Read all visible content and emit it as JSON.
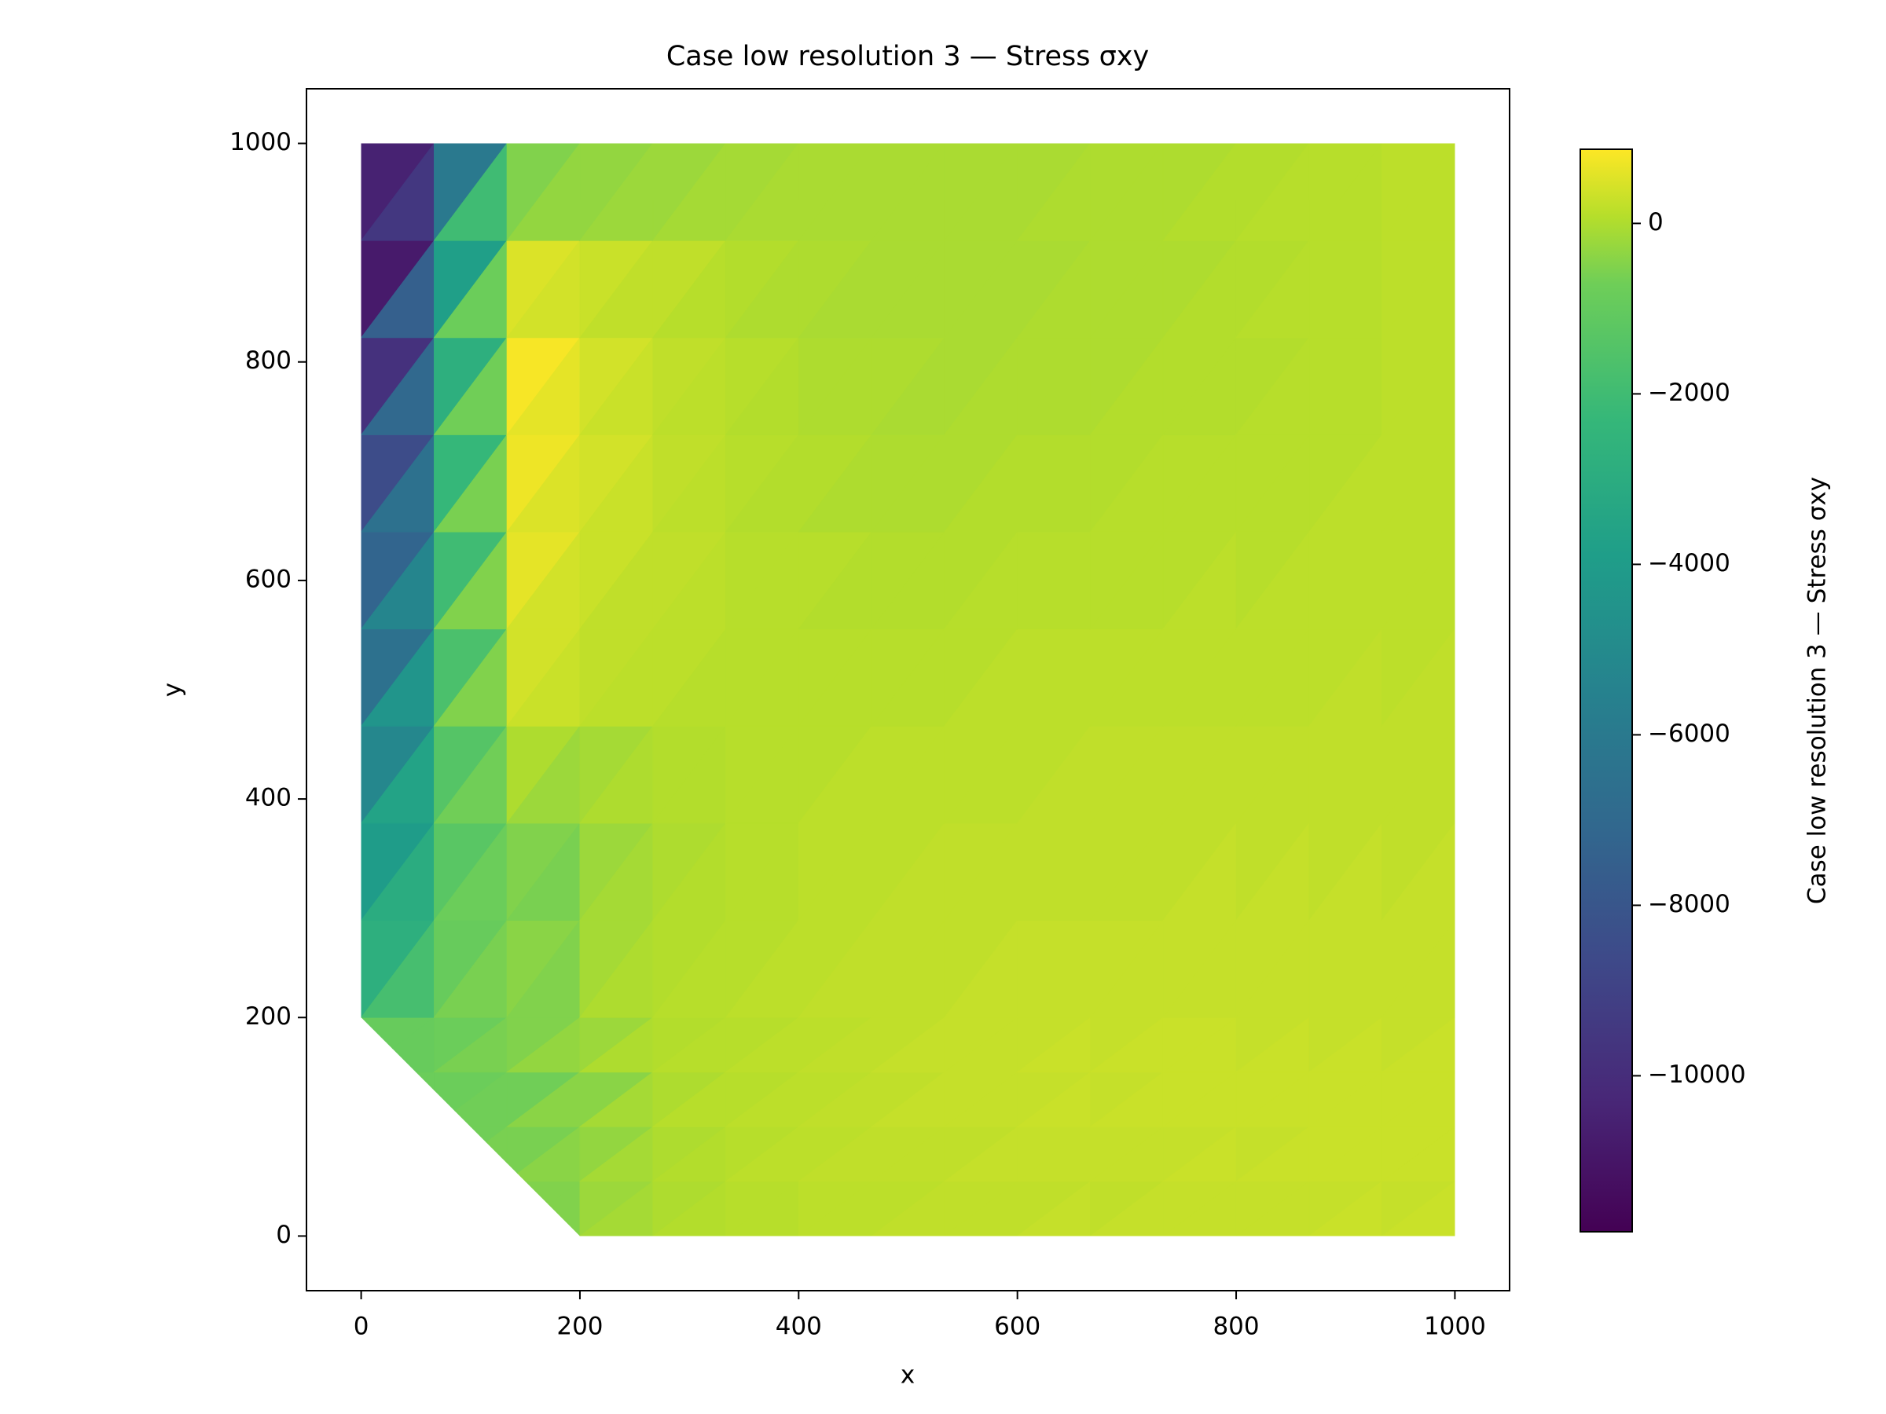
{
  "chart_data": {
    "type": "tripcolor",
    "title": "Case low resolution 3 — Stress σxy",
    "xlabel": "x",
    "ylabel": "y",
    "colorbar_label": "Case low resolution 3 — Stress σxy",
    "colormap": "viridis",
    "xlim": [
      -50,
      1050
    ],
    "ylim": [
      -50,
      1050
    ],
    "xticks": [
      0,
      200,
      400,
      600,
      800,
      1000
    ],
    "yticks": [
      0,
      200,
      400,
      600,
      800,
      1000
    ],
    "clim": [
      -11830,
      870
    ],
    "cticks": [
      {
        "value": 0,
        "label": "0"
      },
      {
        "value": -2000,
        "label": "−2000"
      },
      {
        "value": -4000,
        "label": "−4000"
      },
      {
        "value": -6000,
        "label": "−6000"
      },
      {
        "value": -8000,
        "label": "−8000"
      },
      {
        "value": -10000,
        "label": "−10000"
      }
    ],
    "domain": [
      [
        0,
        200
      ],
      [
        0,
        1000
      ],
      [
        1000,
        1000
      ],
      [
        1000,
        0
      ],
      [
        200,
        0
      ]
    ],
    "xedges": [
      0,
      66.7,
      133.3,
      200,
      266.7,
      333.3,
      400,
      466.7,
      533.3,
      600,
      666.7,
      733.3,
      800,
      866.7,
      933.3,
      1000
    ],
    "yedges": [
      0,
      50,
      100,
      150,
      200,
      288.9,
      377.8,
      466.7,
      555.6,
      644.4,
      733.3,
      822.2,
      911.1,
      1000
    ],
    "values": [
      [
        [
          -600,
          -600
        ],
        [
          -600,
          -600
        ],
        [
          -500,
          -500
        ],
        [
          -200,
          -100
        ],
        [
          0,
          50
        ],
        [
          100,
          100
        ],
        [
          150,
          150
        ],
        [
          150,
          200
        ],
        [
          200,
          200
        ],
        [
          200,
          250
        ],
        [
          200,
          250
        ],
        [
          250,
          250
        ],
        [
          250,
          250
        ],
        [
          250,
          300
        ],
        [
          250,
          300
        ]
      ],
      [
        [
          -700,
          -700
        ],
        [
          -700,
          -600
        ],
        [
          -600,
          -400
        ],
        [
          -300,
          -100
        ],
        [
          0,
          50
        ],
        [
          100,
          150
        ],
        [
          150,
          200
        ],
        [
          200,
          200
        ],
        [
          200,
          250
        ],
        [
          250,
          250
        ],
        [
          250,
          250
        ],
        [
          250,
          300
        ],
        [
          250,
          300
        ],
        [
          300,
          300
        ],
        [
          300,
          300
        ]
      ],
      [
        [
          -800,
          -800
        ],
        [
          -800,
          -700
        ],
        [
          -700,
          -400
        ],
        [
          -400,
          -100
        ],
        [
          0,
          100
        ],
        [
          100,
          150
        ],
        [
          150,
          200
        ],
        [
          200,
          250
        ],
        [
          250,
          250
        ],
        [
          250,
          300
        ],
        [
          250,
          300
        ],
        [
          300,
          300
        ],
        [
          300,
          300
        ],
        [
          300,
          300
        ],
        [
          300,
          300
        ]
      ],
      [
        [
          -900,
          -900
        ],
        [
          -800,
          -600
        ],
        [
          -500,
          -300
        ],
        [
          -200,
          0
        ],
        [
          50,
          100
        ],
        [
          100,
          150
        ],
        [
          150,
          200
        ],
        [
          200,
          250
        ],
        [
          250,
          250
        ],
        [
          250,
          300
        ],
        [
          250,
          300
        ],
        [
          300,
          300
        ],
        [
          250,
          300
        ],
        [
          250,
          300
        ],
        [
          250,
          300
        ]
      ],
      [
        [
          -2800,
          -1800
        ],
        [
          -900,
          -600
        ],
        [
          -400,
          -500
        ],
        [
          -100,
          0
        ],
        [
          50,
          100
        ],
        [
          100,
          150
        ],
        [
          150,
          200
        ],
        [
          200,
          200
        ],
        [
          200,
          250
        ],
        [
          250,
          250
        ],
        [
          250,
          250
        ],
        [
          250,
          250
        ],
        [
          250,
          250
        ],
        [
          250,
          250
        ],
        [
          250,
          250
        ]
      ],
      [
        [
          -4000,
          -3000
        ],
        [
          -1300,
          -800
        ],
        [
          -500,
          -600
        ],
        [
          -200,
          -100
        ],
        [
          0,
          50
        ],
        [
          100,
          100
        ],
        [
          150,
          150
        ],
        [
          150,
          200
        ],
        [
          200,
          200
        ],
        [
          200,
          200
        ],
        [
          200,
          200
        ],
        [
          200,
          250
        ],
        [
          200,
          250
        ],
        [
          200,
          250
        ],
        [
          200,
          250
        ]
      ],
      [
        [
          -5200,
          -3600
        ],
        [
          -1400,
          -700
        ],
        [
          0,
          -200
        ],
        [
          -100,
          0
        ],
        [
          50,
          50
        ],
        [
          100,
          100
        ],
        [
          100,
          150
        ],
        [
          150,
          150
        ],
        [
          150,
          150
        ],
        [
          150,
          200
        ],
        [
          200,
          200
        ],
        [
          200,
          200
        ],
        [
          200,
          200
        ],
        [
          200,
          200
        ],
        [
          200,
          200
        ]
      ],
      [
        [
          -6500,
          -4400
        ],
        [
          -1700,
          -500
        ],
        [
          400,
          300
        ],
        [
          200,
          150
        ],
        [
          150,
          100
        ],
        [
          100,
          100
        ],
        [
          100,
          100
        ],
        [
          100,
          100
        ],
        [
          100,
          150
        ],
        [
          150,
          150
        ],
        [
          150,
          150
        ],
        [
          150,
          150
        ],
        [
          150,
          150
        ],
        [
          150,
          200
        ],
        [
          150,
          200
        ]
      ],
      [
        [
          -7200,
          -5300
        ],
        [
          -2000,
          -500
        ],
        [
          600,
          400
        ],
        [
          300,
          200
        ],
        [
          200,
          150
        ],
        [
          100,
          100
        ],
        [
          100,
          50
        ],
        [
          50,
          50
        ],
        [
          50,
          100
        ],
        [
          100,
          100
        ],
        [
          100,
          100
        ],
        [
          100,
          150
        ],
        [
          100,
          150
        ],
        [
          150,
          150
        ],
        [
          150,
          150
        ]
      ],
      [
        [
          -8500,
          -6500
        ],
        [
          -2300,
          -600
        ],
        [
          700,
          500
        ],
        [
          400,
          300
        ],
        [
          200,
          150
        ],
        [
          100,
          50
        ],
        [
          50,
          0
        ],
        [
          0,
          0
        ],
        [
          0,
          50
        ],
        [
          50,
          50
        ],
        [
          50,
          100
        ],
        [
          100,
          100
        ],
        [
          100,
          100
        ],
        [
          100,
          150
        ],
        [
          150,
          150
        ]
      ],
      [
        [
          -9800,
          -7000
        ],
        [
          -2800,
          -700
        ],
        [
          800,
          600
        ],
        [
          400,
          300
        ],
        [
          200,
          150
        ],
        [
          100,
          50
        ],
        [
          0,
          0
        ],
        [
          0,
          -50
        ],
        [
          -50,
          0
        ],
        [
          0,
          0
        ],
        [
          0,
          50
        ],
        [
          50,
          50
        ],
        [
          50,
          100
        ],
        [
          100,
          100
        ],
        [
          150,
          150
        ]
      ],
      [
        [
          -10800,
          -7500
        ],
        [
          -3800,
          -800
        ],
        [
          500,
          400
        ],
        [
          300,
          200
        ],
        [
          200,
          100
        ],
        [
          50,
          0
        ],
        [
          0,
          -50
        ],
        [
          -50,
          -50
        ],
        [
          -50,
          -50
        ],
        [
          -50,
          0
        ],
        [
          0,
          0
        ],
        [
          0,
          50
        ],
        [
          50,
          100
        ],
        [
          100,
          100
        ],
        [
          150,
          150
        ]
      ],
      [
        [
          -10500,
          -9500
        ],
        [
          -6000,
          -2000
        ],
        [
          -500,
          -300
        ],
        [
          -300,
          -200
        ],
        [
          -200,
          -100
        ],
        [
          -100,
          -50
        ],
        [
          -50,
          -50
        ],
        [
          -50,
          -50
        ],
        [
          -50,
          -50
        ],
        [
          -50,
          0
        ],
        [
          0,
          0
        ],
        [
          0,
          50
        ],
        [
          50,
          100
        ],
        [
          100,
          100
        ],
        [
          150,
          150
        ]
      ]
    ]
  }
}
